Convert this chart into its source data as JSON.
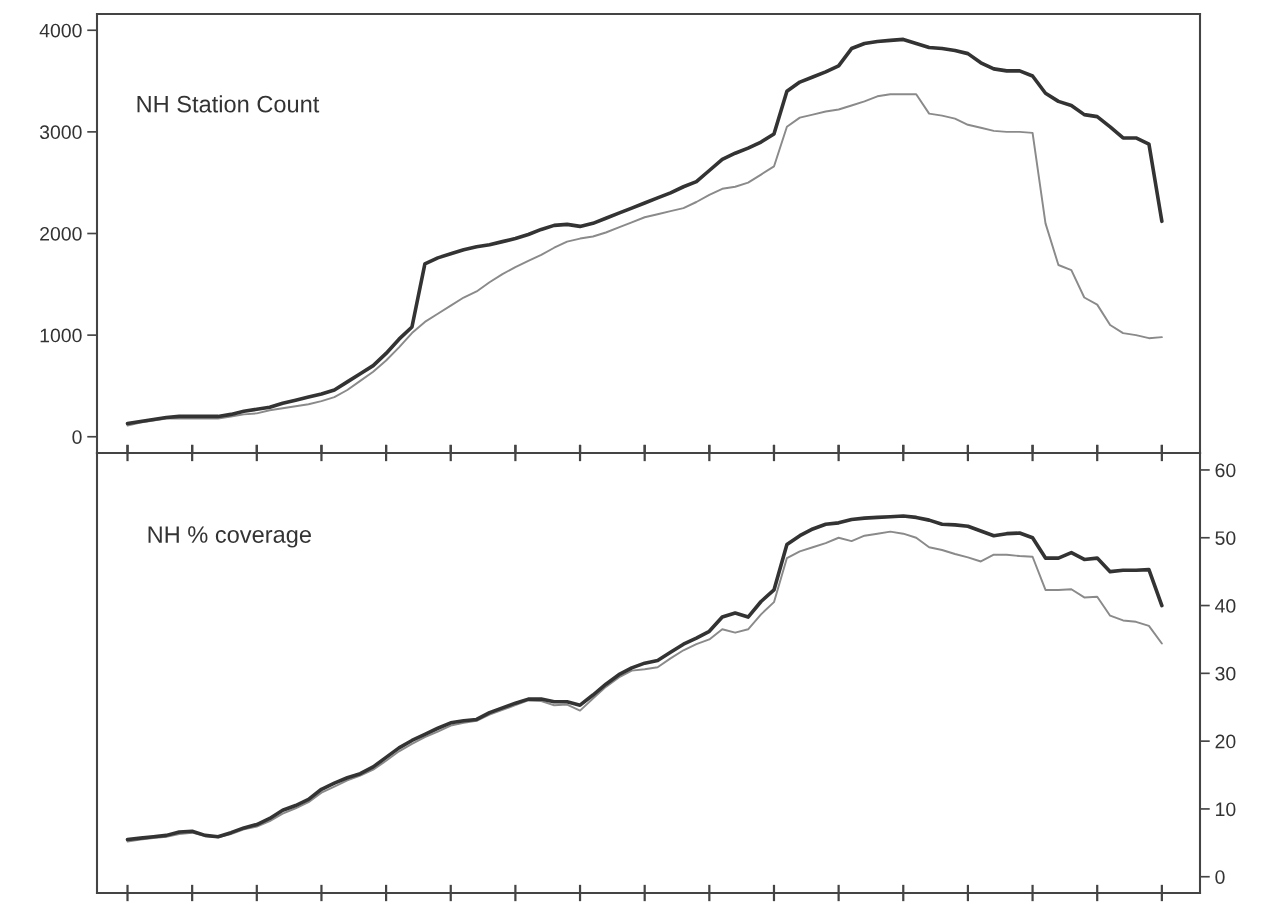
{
  "chart_data": [
    {
      "type": "line",
      "title": "NH Station Count",
      "categories": [
        null,
        null,
        null,
        null,
        null,
        null,
        null,
        null,
        null,
        null,
        null,
        null,
        null,
        null,
        null,
        null,
        null,
        null,
        null,
        null,
        null,
        null,
        null,
        null,
        null,
        null,
        null,
        null,
        null,
        null,
        null,
        null,
        null,
        null,
        null,
        null,
        null,
        null,
        null,
        null,
        null,
        null,
        null,
        null,
        null,
        null,
        null,
        null,
        null,
        null,
        null,
        null,
        null,
        null,
        null,
        null,
        null,
        null,
        null,
        null,
        null,
        null,
        null,
        null,
        null,
        null,
        null,
        null,
        null,
        null,
        null,
        null,
        null,
        null,
        null,
        null,
        null,
        null,
        null,
        null,
        null
      ],
      "ylim": [
        -160,
        4160
      ],
      "yticks": [
        0,
        1000,
        2000,
        3000,
        4000
      ],
      "tick_labels": "y",
      "grid": false,
      "series": [
        {
          "color": "#333333",
          "values": [
            130,
            150,
            170,
            190,
            200,
            200,
            200,
            200,
            220,
            250,
            270,
            290,
            330,
            360,
            390,
            420,
            460,
            540,
            620,
            700,
            820,
            960,
            1080,
            1700,
            1760,
            1800,
            1840,
            1870,
            1890,
            1920,
            1950,
            1990,
            2040,
            2080,
            2090,
            2070,
            2100,
            2150,
            2200,
            2250,
            2300,
            2350,
            2400,
            2460,
            2510,
            2620,
            2730,
            2790,
            2840,
            2900,
            2980,
            3400,
            3490,
            3540,
            3590,
            3650,
            3820,
            3870,
            3890,
            3900,
            3910,
            3870,
            3830,
            3820,
            3800,
            3770,
            3680,
            3620,
            3600,
            3600,
            3550,
            3380,
            3300,
            3260,
            3170,
            3150,
            3050,
            2940,
            2940,
            2880,
            2120
          ]
        },
        {
          "color": "#8a8a8a",
          "values": [
            110,
            140,
            160,
            180,
            180,
            180,
            180,
            180,
            200,
            220,
            230,
            260,
            280,
            300,
            320,
            350,
            390,
            460,
            550,
            640,
            750,
            880,
            1020,
            1130,
            1210,
            1290,
            1370,
            1430,
            1520,
            1600,
            1670,
            1730,
            1790,
            1860,
            1920,
            1950,
            1970,
            2010,
            2060,
            2110,
            2160,
            2190,
            2220,
            2250,
            2310,
            2380,
            2440,
            2460,
            2500,
            2580,
            2660,
            3050,
            3140,
            3170,
            3200,
            3220,
            3260,
            3300,
            3350,
            3370,
            3370,
            3370,
            3180,
            3160,
            3130,
            3070,
            3040,
            3010,
            3000,
            3000,
            2990,
            2100,
            1690,
            1640,
            1370,
            1300,
            1100,
            1020,
            1000,
            970,
            980
          ]
        }
      ]
    },
    {
      "type": "line",
      "title": "NH % coverage",
      "categories": [
        null,
        null,
        null,
        null,
        null,
        null,
        null,
        null,
        null,
        null,
        null,
        null,
        null,
        null,
        null,
        null,
        null,
        null,
        null,
        null,
        null,
        null,
        null,
        null,
        null,
        null,
        null,
        null,
        null,
        null,
        null,
        null,
        null,
        null,
        null,
        null,
        null,
        null,
        null,
        null,
        null,
        null,
        null,
        null,
        null,
        null,
        null,
        null,
        null,
        null,
        null,
        null,
        null,
        null,
        null,
        null,
        null,
        null,
        null,
        null,
        null,
        null,
        null,
        null,
        null,
        null,
        null,
        null,
        null,
        null,
        null,
        null,
        null,
        null,
        null,
        null,
        null,
        null,
        null,
        null,
        null
      ],
      "ylim": [
        -2.4,
        62.5
      ],
      "yticks": [
        0,
        10,
        20,
        30,
        40,
        50,
        60
      ],
      "tick_labels": "y",
      "grid": false,
      "series": [
        {
          "color": "#333333",
          "values": [
            5.5,
            5.7,
            5.9,
            6.1,
            6.6,
            6.7,
            6.1,
            5.9,
            6.5,
            7.2,
            7.7,
            8.6,
            9.8,
            10.5,
            11.4,
            12.9,
            13.8,
            14.6,
            15.2,
            16.2,
            17.6,
            19.0,
            20.1,
            21.0,
            21.9,
            22.7,
            23.0,
            23.2,
            24.2,
            24.9,
            25.6,
            26.2,
            26.2,
            25.8,
            25.8,
            25.3,
            26.8,
            28.4,
            29.8,
            30.8,
            31.5,
            31.9,
            33.1,
            34.3,
            35.2,
            36.2,
            38.3,
            38.9,
            38.3,
            40.6,
            42.3,
            49.0,
            50.3,
            51.3,
            52.0,
            52.2,
            52.7,
            52.9,
            53.0,
            53.1,
            53.2,
            53.0,
            52.6,
            52.0,
            51.9,
            51.7,
            51.0,
            50.3,
            50.6,
            50.7,
            50.0,
            47.0,
            47.0,
            47.8,
            46.8,
            47.0,
            45.0,
            45.2,
            45.2,
            45.3,
            40.0
          ]
        },
        {
          "color": "#8a8a8a",
          "values": [
            5.2,
            5.5,
            5.7,
            5.9,
            6.3,
            6.5,
            6.0,
            5.8,
            6.3,
            7.0,
            7.4,
            8.2,
            9.3,
            10.1,
            11.0,
            12.4,
            13.3,
            14.2,
            14.9,
            15.8,
            17.1,
            18.5,
            19.6,
            20.6,
            21.4,
            22.3,
            22.7,
            23.0,
            23.9,
            24.6,
            25.3,
            26.0,
            25.9,
            25.3,
            25.4,
            24.5,
            26.3,
            28.0,
            29.4,
            30.4,
            30.6,
            30.9,
            32.2,
            33.4,
            34.3,
            35.0,
            36.5,
            36.0,
            36.5,
            38.7,
            40.5,
            47.0,
            48.0,
            48.6,
            49.2,
            50.0,
            49.5,
            50.3,
            50.6,
            50.9,
            50.6,
            50.0,
            48.6,
            48.2,
            47.6,
            47.1,
            46.5,
            47.5,
            47.5,
            47.3,
            47.2,
            42.3,
            42.3,
            42.4,
            41.2,
            41.3,
            38.5,
            37.8,
            37.6,
            37.0,
            34.4
          ]
        }
      ]
    }
  ]
}
